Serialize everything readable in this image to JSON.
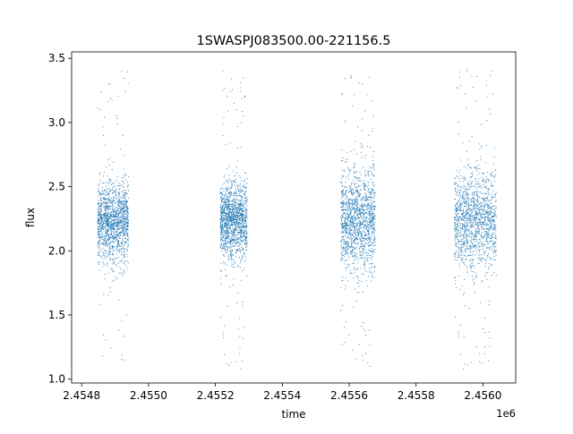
{
  "chart_data": {
    "type": "scatter",
    "title": "1SWASPJ083500.00-221156.5",
    "xlabel": "time",
    "ylabel": "flux",
    "x_offset_label": "1e6",
    "xlim": [
      2454770,
      2456098
    ],
    "ylim": [
      0.97,
      3.55
    ],
    "x_ticks": [
      {
        "value": 2454800,
        "label": "2.4548"
      },
      {
        "value": 2455000,
        "label": "2.4550"
      },
      {
        "value": 2455200,
        "label": "2.4552"
      },
      {
        "value": 2455400,
        "label": "2.4554"
      },
      {
        "value": 2455600,
        "label": "2.4556"
      },
      {
        "value": 2455800,
        "label": "2.4558"
      },
      {
        "value": 2456000,
        "label": "2.4560"
      }
    ],
    "y_ticks": [
      {
        "value": 1.0,
        "label": "1.0"
      },
      {
        "value": 1.5,
        "label": "1.5"
      },
      {
        "value": 2.0,
        "label": "2.0"
      },
      {
        "value": 2.5,
        "label": "2.5"
      },
      {
        "value": 3.0,
        "label": "3.0"
      },
      {
        "value": 3.5,
        "label": "3.5"
      }
    ],
    "grid": false,
    "legend": "none",
    "marker_color": "#1f77b4",
    "series": [
      {
        "x_range": [
          2454848,
          2454940
        ],
        "center": 2.22,
        "typical_range": [
          1.95,
          2.55
        ],
        "full_range": [
          1.1,
          3.4
        ],
        "points": [
          [
            2454850,
            2.3
          ],
          [
            2454858,
            2.15
          ],
          [
            2454866,
            2.4
          ],
          [
            2454874,
            2.05
          ],
          [
            2454882,
            2.35
          ],
          [
            2454890,
            2.2
          ],
          [
            2454898,
            2.5
          ],
          [
            2454906,
            2.0
          ],
          [
            2454914,
            2.45
          ],
          [
            2454922,
            2.25
          ],
          [
            2454930,
            2.6
          ],
          [
            2454938,
            1.85
          ],
          [
            2454880,
            3.3
          ],
          [
            2454920,
            3.4
          ],
          [
            2454928,
            1.15
          ],
          [
            2454935,
            1.5
          ]
        ]
      },
      {
        "x_range": [
          2455215,
          2455295
        ],
        "center": 2.23,
        "typical_range": [
          1.95,
          2.55
        ],
        "full_range": [
          1.08,
          3.4
        ],
        "points": [
          [
            2455216,
            2.2
          ],
          [
            2455224,
            2.4
          ],
          [
            2455232,
            2.05
          ],
          [
            2455240,
            2.3
          ],
          [
            2455248,
            2.15
          ],
          [
            2455256,
            2.45
          ],
          [
            2455264,
            2.0
          ],
          [
            2455272,
            2.35
          ],
          [
            2455280,
            2.25
          ],
          [
            2455288,
            2.55
          ],
          [
            2455294,
            2.1
          ],
          [
            2455222,
            3.4
          ],
          [
            2455264,
            3.1
          ],
          [
            2455276,
            1.08
          ],
          [
            2455286,
            1.4
          ]
        ]
      },
      {
        "x_range": [
          2455575,
          2455678
        ],
        "center": 2.23,
        "typical_range": [
          1.85,
          2.65
        ],
        "full_range": [
          1.1,
          3.37
        ],
        "points": [
          [
            2455578,
            2.25
          ],
          [
            2455588,
            2.4
          ],
          [
            2455598,
            2.05
          ],
          [
            2455608,
            2.35
          ],
          [
            2455618,
            2.15
          ],
          [
            2455628,
            2.5
          ],
          [
            2455638,
            1.95
          ],
          [
            2455648,
            2.45
          ],
          [
            2455658,
            2.2
          ],
          [
            2455668,
            2.6
          ],
          [
            2455676,
            2.1
          ],
          [
            2455605,
            3.35
          ],
          [
            2455640,
            3.3
          ],
          [
            2455650,
            1.2
          ],
          [
            2455662,
            1.1
          ]
        ]
      },
      {
        "x_range": [
          2455915,
          2456040
        ],
        "center": 2.23,
        "typical_range": [
          1.85,
          2.65
        ],
        "full_range": [
          1.08,
          3.42
        ],
        "points": [
          [
            2455918,
            2.2
          ],
          [
            2455930,
            2.45
          ],
          [
            2455942,
            2.05
          ],
          [
            2455954,
            2.35
          ],
          [
            2455966,
            2.15
          ],
          [
            2455978,
            2.55
          ],
          [
            2455990,
            1.95
          ],
          [
            2456002,
            2.4
          ],
          [
            2456014,
            2.25
          ],
          [
            2456026,
            2.6
          ],
          [
            2456038,
            2.1
          ],
          [
            2455930,
            3.35
          ],
          [
            2456028,
            3.4
          ],
          [
            2455942,
            1.08
          ],
          [
            2455990,
            1.2
          ]
        ]
      }
    ]
  }
}
